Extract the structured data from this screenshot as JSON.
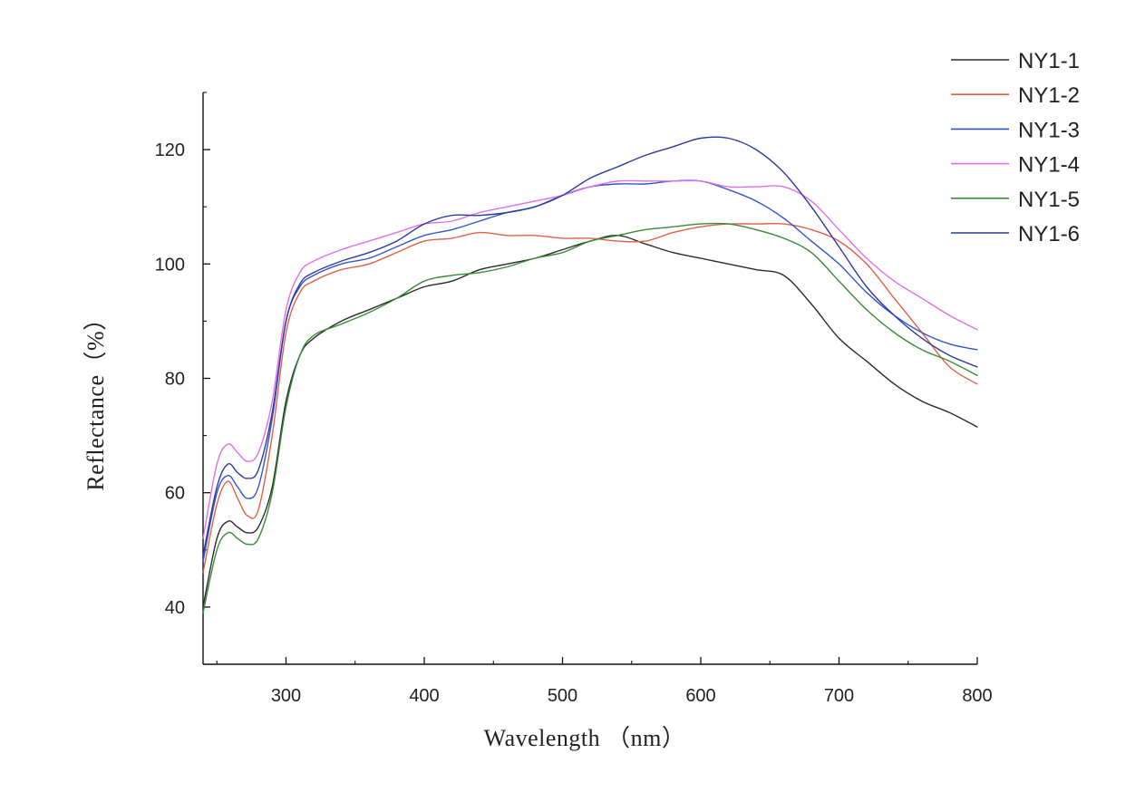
{
  "chart_data": {
    "type": "line",
    "title": "",
    "xlabel": "Wavelength （nm）",
    "ylabel": "Reflectance（%）",
    "xlim": [
      240,
      800
    ],
    "ylim": [
      30,
      130
    ],
    "xticks": [
      300,
      400,
      500,
      600,
      700,
      800
    ],
    "yticks": [
      40,
      60,
      80,
      100,
      120
    ],
    "legend_position": "top-right",
    "x": [
      240,
      250,
      258,
      265,
      272,
      280,
      290,
      300,
      310,
      320,
      340,
      360,
      380,
      400,
      420,
      440,
      460,
      480,
      500,
      520,
      540,
      560,
      580,
      600,
      620,
      640,
      660,
      680,
      700,
      720,
      740,
      760,
      780,
      800
    ],
    "series": [
      {
        "name": "NY1-1",
        "color": "#2b2b2b",
        "values": [
          40,
          52,
          55,
          54,
          53,
          54,
          61,
          76,
          84,
          87,
          90,
          92,
          94,
          96,
          97,
          99,
          100,
          101,
          102.5,
          104,
          105,
          103.5,
          102,
          101,
          100,
          99,
          98,
          93,
          87,
          83,
          79,
          76,
          74,
          71.5
        ]
      },
      {
        "name": "NY1-2",
        "color": "#e0614a",
        "values": [
          46,
          58,
          62,
          59,
          56,
          57,
          70,
          88,
          95,
          97,
          99,
          100,
          102,
          104,
          104.5,
          105.5,
          105,
          105,
          104.5,
          104.5,
          104,
          104,
          105.5,
          106.5,
          107,
          107,
          107,
          106,
          104,
          100,
          94,
          88,
          82,
          79
        ]
      },
      {
        "name": "NY1-3",
        "color": "#3355cc",
        "values": [
          48,
          60,
          63,
          61,
          59,
          61,
          73,
          90,
          96,
          98,
          100,
          101,
          103,
          105,
          106,
          107.5,
          109,
          110,
          112,
          113.5,
          114,
          114,
          114.5,
          114.5,
          113,
          111,
          108,
          104,
          100,
          95,
          91,
          88,
          86,
          85
        ]
      },
      {
        "name": "NY1-4",
        "color": "#e070e8",
        "values": [
          52,
          65,
          68.5,
          67,
          65.5,
          67,
          76,
          92,
          98.5,
          100.5,
          102.5,
          104,
          105.5,
          107,
          107.5,
          109,
          110,
          111,
          112,
          113.5,
          114.5,
          114.5,
          114.5,
          114.5,
          113.5,
          113.5,
          113.5,
          111,
          106,
          101,
          97,
          94,
          91,
          88.5
        ]
      },
      {
        "name": "NY1-5",
        "color": "#3a8a3a",
        "values": [
          39,
          50,
          53,
          52,
          51,
          52,
          60,
          75,
          84,
          87.5,
          89.5,
          91.5,
          94,
          97,
          98,
          98.5,
          99.5,
          101,
          102,
          104,
          105,
          106,
          106.5,
          107,
          107,
          106,
          104.5,
          102,
          97,
          92,
          88,
          85,
          83,
          80.5
        ]
      },
      {
        "name": "NY1-6",
        "color": "#2f3aa0",
        "values": [
          49,
          61,
          65,
          63.5,
          62.5,
          64,
          74,
          90,
          96.5,
          98.5,
          100.5,
          102,
          104,
          107,
          108.5,
          108.5,
          109,
          110,
          112,
          115,
          117,
          119,
          120.5,
          122,
          122,
          120,
          116,
          110,
          103,
          96,
          91,
          87,
          84,
          82
        ]
      }
    ]
  }
}
